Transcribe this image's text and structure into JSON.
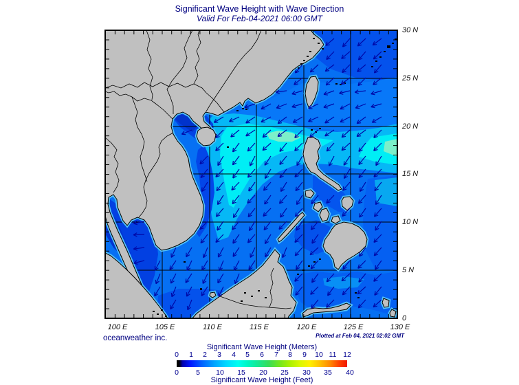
{
  "title": "Significant Wave Height with Wave Direction",
  "subtitle": "Valid For Feb-04-2021 06:00 GMT",
  "credit": "oceanweather inc.",
  "plotted": "Plotted at Feb 04, 2021 02:02 GMT",
  "map": {
    "lat_labels": [
      "30 N",
      "25 N",
      "20 N",
      "15 N",
      "10 N",
      "5 N",
      "0"
    ],
    "lon_labels": [
      "100 E",
      "105 E",
      "110 E",
      "115 E",
      "120 E",
      "125 E",
      "130 E"
    ],
    "land_color": "#c0c0c0",
    "ocean_base_color": "#0670f3",
    "arrow_color": "#0009a8",
    "grid_color": "#000000"
  },
  "colorbar": {
    "title_meters": "Significant Wave Height (Meters)",
    "title_feet": "Significant Wave Height (Feet)",
    "meters_ticks": [
      "0",
      "1",
      "2",
      "3",
      "4",
      "5",
      "6",
      "7",
      "8",
      "9",
      "10",
      "11",
      "12"
    ],
    "feet_ticks": [
      "0",
      "5",
      "10",
      "15",
      "20",
      "25",
      "30",
      "35",
      "40"
    ]
  },
  "chart_data": {
    "type": "heatmap",
    "title": "Significant Wave Height with Wave Direction",
    "region": {
      "lon_range_deg_e": [
        99,
        130
      ],
      "lat_range_deg_n": [
        0,
        30
      ]
    },
    "valid_time": "Feb-04-2021 06:00 GMT",
    "plotted_time": "Feb 04, 2021 02:02 GMT",
    "colorbar_range_meters": [
      0,
      12
    ],
    "colorbar_range_feet": [
      0,
      40
    ],
    "colormap": "jet (black at 0, blue-cyan-green-yellow-red)",
    "depicted_pattern": "Northeast-monsoon waves of 1-3.5 m propagating southwest across the South China Sea and Philippine Sea; peak (~3-3.5 m, pale green-cyan) between Luzon Strait and the central Vietnam coast near 15-20 N; calmer (~0.5-1 m, dark blue) Gulf of Thailand, Gulf of Tonkin and island seas",
    "arrow_meaning": "wave direction, predominantly toward the southwest"
  }
}
